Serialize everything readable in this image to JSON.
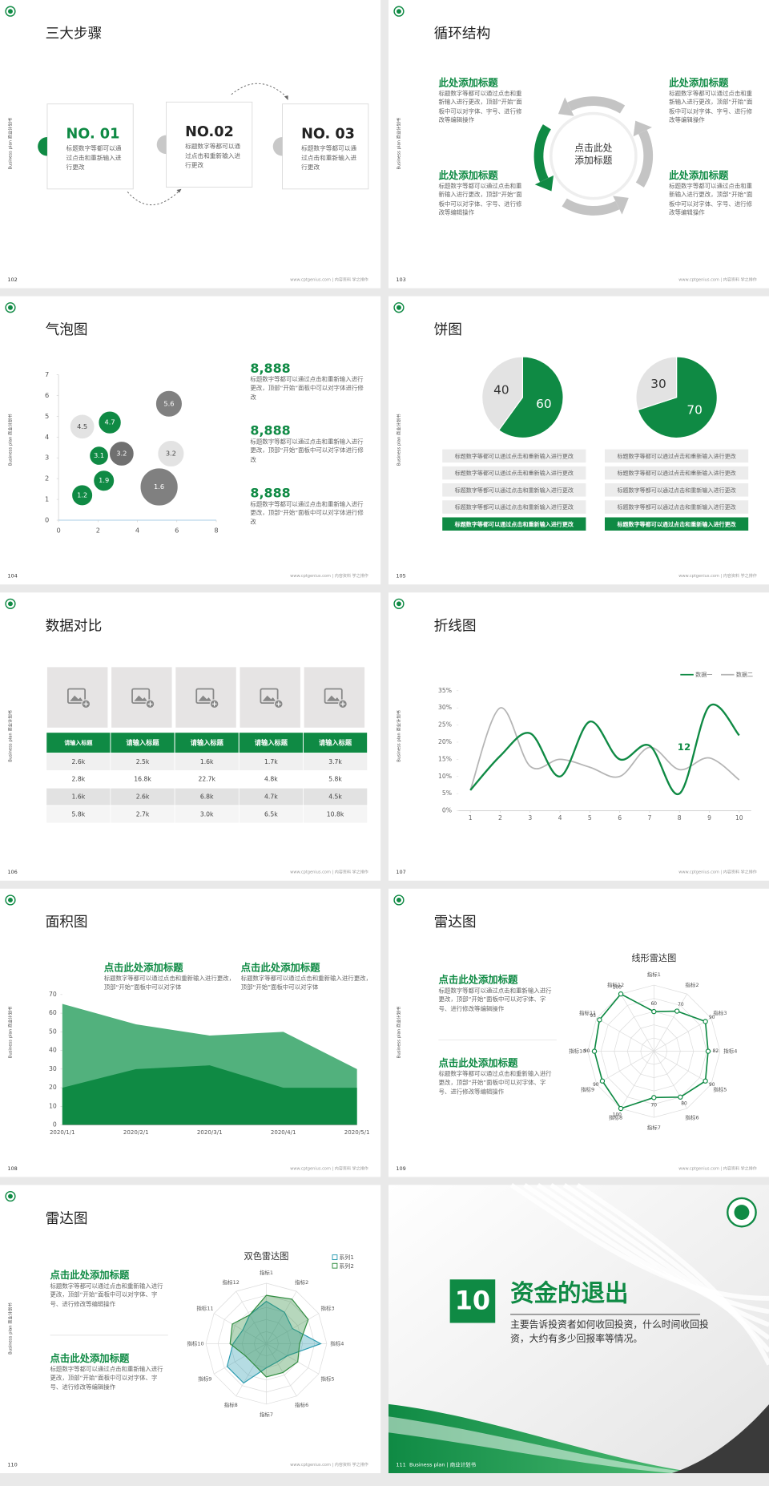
{
  "side_label": "Business plan 商业计划书",
  "footer": "www.cptgenius.com | 内容资料 学之排作",
  "slides": [
    {
      "page": "102",
      "title": "三大步骤",
      "steps": [
        {
          "number": "NO. 01",
          "text": "标题数字等都可以通过点击和重新输入进行更改"
        },
        {
          "number": "NO.02",
          "text": "标题数字等都可以通过点击和重新输入进行更改"
        },
        {
          "number": "NO. 03",
          "text": "标题数字等都可以通过点击和重新输入进行更改"
        }
      ]
    },
    {
      "page": "103",
      "title": "循环结构",
      "center": "点击此处添加标题",
      "blocks": [
        {
          "heading": "此处添加标题",
          "text": "标题数字等都可以通过点击和重新输入进行更改，顶部“开始”面板中可以对字体、字号、进行修改等编辑操作"
        },
        {
          "heading": "此处添加标题",
          "text": "标题数字等都可以通过点击和重新输入进行更改，顶部“开始”面板中可以对字体、字号、进行修改等编辑操作"
        },
        {
          "heading": "此处添加标题",
          "text": "标题数字等都可以通过点击和重新输入进行更改，顶部“开始”面板中可以对字体、字号、进行修改等编辑操作"
        },
        {
          "heading": "此处添加标题",
          "text": "标题数字等都可以通过点击和重新输入进行更改，顶部“开始”面板中可以对字体、字号、进行修改等编辑操作"
        }
      ]
    },
    {
      "page": "104",
      "title": "气泡图",
      "chart": {
        "type": "bubble",
        "xlim": [
          0,
          8
        ],
        "xticks": [
          0,
          2,
          4,
          6,
          8
        ],
        "ylim": [
          0,
          7
        ],
        "yticks": [
          0,
          1,
          2,
          3,
          4,
          5,
          6,
          7
        ],
        "points": [
          {
            "x": 1.2,
            "y": 1.2,
            "size": 11,
            "color": "#0f8a44"
          },
          {
            "x": 2.3,
            "y": 1.9,
            "size": 11,
            "color": "#0f8a44"
          },
          {
            "x": 2.05,
            "y": 3.1,
            "size": 10,
            "color": "#0f8a44"
          },
          {
            "x": 3.2,
            "y": 3.2,
            "size": 13,
            "color": "#707070"
          },
          {
            "x": 1.2,
            "y": 4.5,
            "size": 13,
            "color": "#e3e3e3"
          },
          {
            "x": 2.6,
            "y": 4.7,
            "size": 12,
            "color": "#0f8a44"
          },
          {
            "x": 5.6,
            "y": 5.6,
            "size": 14,
            "color": "#808080"
          },
          {
            "x": 5.7,
            "y": 3.2,
            "size": 14,
            "color": "#e3e3e3"
          },
          {
            "x": 5.1,
            "y": 1.6,
            "size": 20,
            "color": "#808080"
          }
        ]
      },
      "stats": [
        {
          "value": "8,888",
          "text": "标题数字等都可以通过点击和重新输入进行更改，顶部“开始”面板中可以对字体进行修改"
        },
        {
          "value": "8,888",
          "text": "标题数字等都可以通过点击和重新输入进行更改，顶部“开始”面板中可以对字体进行修改"
        },
        {
          "value": "8,888",
          "text": "标题数字等都可以通过点击和重新输入进行更改，顶部“开始”面板中可以对字体进行修改"
        }
      ]
    },
    {
      "page": "105",
      "title": "饼图",
      "pies": [
        {
          "type": "pie",
          "values": [
            60,
            40
          ],
          "colors": [
            "#0f8a44",
            "#e3e3e3"
          ],
          "rows": [
            "标题数字等都可以通过点击和重新输入进行更改",
            "标题数字等都可以通过点击和重新输入进行更改",
            "标题数字等都可以通过点击和重新输入进行更改",
            "标题数字等都可以通过点击和重新输入进行更改",
            "标题数字等都可以通过点击和重新输入进行更改"
          ]
        },
        {
          "type": "pie",
          "values": [
            70,
            30
          ],
          "colors": [
            "#0f8a44",
            "#e3e3e3"
          ],
          "rows": [
            "标题数字等都可以通过点击和重新输入进行更改",
            "标题数字等都可以通过点击和重新输入进行更改",
            "标题数字等都可以通过点击和重新输入进行更改",
            "标题数字等都可以通过点击和重新输入进行更改",
            "标题数字等都可以通过点击和重新输入进行更改"
          ]
        }
      ]
    },
    {
      "page": "106",
      "title": "数据对比",
      "table": {
        "header": [
          "请输入标题",
          "请输入标题",
          "请输入标题",
          "请输入标题",
          "请输入标题"
        ],
        "rows": [
          [
            "2.6k",
            "2.5k",
            "1.6k",
            "1.7k",
            "3.7k"
          ],
          [
            "2.8k",
            "16.8k",
            "22.7k",
            "4.8k",
            "5.8k"
          ],
          [
            "1.6k",
            "2.6k",
            "6.8k",
            "4.7k",
            "4.5k"
          ],
          [
            "5.8k",
            "2.7k",
            "3.0k",
            "6.5k",
            "10.8k"
          ]
        ]
      }
    },
    {
      "page": "107",
      "title": "折线图",
      "chart": {
        "type": "line",
        "x": [
          1,
          2,
          3,
          4,
          5,
          6,
          7,
          8,
          9,
          10
        ],
        "xlim": [
          0.6,
          10.4
        ],
        "xticks": [
          1,
          2,
          3,
          4,
          5,
          6,
          7,
          8,
          9,
          10
        ],
        "ylim": [
          0,
          35
        ],
        "yticks": [
          {
            "value": 0,
            "label": "0%"
          },
          {
            "value": 5,
            "label": "5%"
          },
          {
            "value": 10,
            "label": "10%"
          },
          {
            "value": 15,
            "label": "15%"
          },
          {
            "value": 20,
            "label": "20%"
          },
          {
            "value": 25,
            "label": "25%"
          },
          {
            "value": 30,
            "label": "30%"
          },
          {
            "value": 35,
            "label": "35%"
          }
        ],
        "legend": "top-right",
        "annotation": "12",
        "series": [
          {
            "name": "数据一",
            "color": "#0f8a44",
            "values": [
              6,
              16,
              22.6,
              10,
              26,
              15,
              19,
              5,
              30.5,
              22
            ]
          },
          {
            "name": "数据二",
            "color": "#b5b5b5",
            "values": [
              6,
              30,
              13,
              15,
              12.7,
              10,
              18.5,
              12,
              15.4,
              9
            ]
          }
        ]
      }
    },
    {
      "page": "108",
      "title": "面积图",
      "blocks": [
        {
          "heading": "点击此处添加标题",
          "text": "标题数字等都可以通过点击和重新输入进行更改，顶部“开始”面板中可以对字体"
        },
        {
          "heading": "点击此处添加标题",
          "text": "标题数字等都可以通过点击和重新输入进行更改，顶部“开始”面板中可以对字体"
        }
      ],
      "chart": {
        "type": "area",
        "categories": [
          "2020/1/1",
          "2020/2/1",
          "2020/3/1",
          "2020/4/1",
          "2020/5/1"
        ],
        "ylim": [
          0,
          70
        ],
        "yticks": [
          0,
          10,
          20,
          30,
          40,
          50,
          60,
          70
        ],
        "series": [
          {
            "color": "#52b17d",
            "values": [
              65,
              54,
              48,
              50,
              30
            ]
          },
          {
            "color": "#0f8a44",
            "values": [
              20,
              30,
              32,
              20,
              20
            ]
          }
        ]
      }
    },
    {
      "page": "109",
      "title": "雷达图",
      "blocks": [
        {
          "heading": "点击此处添加标题",
          "text": "标题数字等都可以通过点击和重新输入进行更改，顶部“开始”面板中可以对字体、字号、进行修改等编辑操作"
        },
        {
          "heading": "点击此处添加标题",
          "text": "标题数字等都可以通过点击和重新输入进行更改，顶部“开始”面板中可以对字体、字号、进行修改等编辑操作"
        }
      ],
      "chart": {
        "type": "radar",
        "title": "线形雷达图",
        "rlim": [
          0,
          100
        ],
        "axes": [
          "指标1",
          "指标2",
          "指标3",
          "指标4",
          "指标5",
          "指标6",
          "指标7",
          "指标8",
          "指标9",
          "指标10",
          "指标11",
          "指标12"
        ],
        "series": [
          {
            "color": "#0f8a44",
            "values": [
              60,
              70,
              90,
              82,
              90,
              80,
              70,
              100,
              90,
              90,
              95,
              100
            ]
          }
        ]
      }
    },
    {
      "page": "110",
      "title": "雷达图",
      "blocks": [
        {
          "heading": "点击此处添加标题",
          "text": "标题数字等都可以通过点击和重新输入进行更改，顶部“开始”面板中可以对字体、字号、进行修改等编辑操作"
        },
        {
          "heading": "点击此处添加标题",
          "text": "标题数字等都可以通过点击和重新输入进行更改，顶部“开始”面板中可以对字体、字号、进行修改等编辑操作"
        }
      ],
      "chart": {
        "type": "radar",
        "title": "双色雷达图",
        "rlim": [
          0,
          100
        ],
        "legend": "top-right",
        "axes": [
          "指标1",
          "指标2",
          "指标3",
          "指标4",
          "指标5",
          "指标6",
          "指标7",
          "指标8",
          "指标9",
          "指标10",
          "指标11",
          "指标12"
        ],
        "series": [
          {
            "name": "系列1",
            "color": "#2a9bb0",
            "values": [
              70,
              60,
              50,
              90,
              40,
              35,
              40,
              75,
              75,
              55,
              45,
              55
            ]
          },
          {
            "name": "系列2",
            "color": "#2e8b3e",
            "values": [
              80,
              85,
              80,
              55,
              60,
              55,
              55,
              40,
              40,
              60,
              65,
              55
            ]
          }
        ]
      }
    },
    {
      "page": "111",
      "number": "10",
      "title": "资金的退出",
      "text": "主要告诉投资者如何收回投资，什么时间收回投资，大约有多少回报率等情况。",
      "bottom": "Business plan | 商业计划书"
    }
  ]
}
